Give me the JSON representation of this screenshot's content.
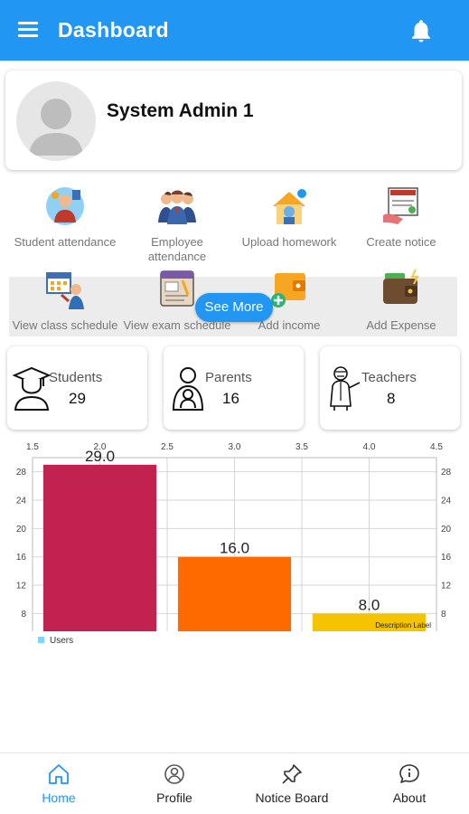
{
  "appbar": {
    "title": "Dashboard"
  },
  "profile": {
    "name": "System Admin 1"
  },
  "actions": [
    {
      "label": "Student attendance",
      "icon": "student-attendance-icon"
    },
    {
      "label": "Employee attendance",
      "icon": "employee-attendance-icon"
    },
    {
      "label": "Upload homework",
      "icon": "upload-homework-icon"
    },
    {
      "label": "Create notice",
      "icon": "create-notice-icon"
    },
    {
      "label": "View class schedule",
      "icon": "class-schedule-icon"
    },
    {
      "label": "View exam schedule",
      "icon": "exam-schedule-icon"
    },
    {
      "label": "Add income",
      "icon": "add-income-icon"
    },
    {
      "label": "Add Expense",
      "icon": "add-expense-icon"
    }
  ],
  "see_more": "See More",
  "stats": [
    {
      "label": "Students",
      "value": "29",
      "icon": "graduate-icon"
    },
    {
      "label": "Parents",
      "value": "16",
      "icon": "parent-icon"
    },
    {
      "label": "Teachers",
      "value": "8",
      "icon": "teacher-icon"
    }
  ],
  "chart_data": {
    "type": "bar",
    "categories": [
      "2",
      "3",
      "4"
    ],
    "x": [
      2,
      3,
      4
    ],
    "values": [
      29.0,
      16.0,
      8.0
    ],
    "value_labels": [
      "29.0",
      "16.0",
      "8.0"
    ],
    "colors": [
      "#C2224F",
      "#FF6A00",
      "#F5C400"
    ],
    "xlim": [
      1.5,
      4.5
    ],
    "xticks": [
      "1.5",
      "2.0",
      "2.5",
      "3.0",
      "3.5",
      "4.0",
      "4.5"
    ],
    "ylim": [
      5.5,
      30
    ],
    "yticks": [
      "8",
      "12",
      "16",
      "20",
      "24",
      "28"
    ],
    "grid": true,
    "legend": "bottom-left",
    "series": [
      {
        "name": "Users",
        "values": [
          29.0,
          16.0,
          8.0
        ]
      }
    ],
    "description": "Description Label",
    "legend_color": "#81D4FA"
  },
  "nav": [
    {
      "label": "Home",
      "icon": "home-icon",
      "active": true
    },
    {
      "label": "Profile",
      "icon": "profile-icon",
      "active": false
    },
    {
      "label": "Notice Board",
      "icon": "pin-icon",
      "active": false
    },
    {
      "label": "About",
      "icon": "about-icon",
      "active": false
    }
  ],
  "colors": {
    "primary": "#2196F3"
  }
}
